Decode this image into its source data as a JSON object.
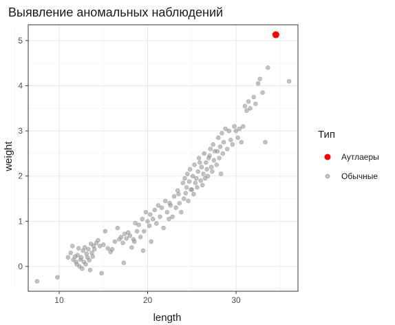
{
  "chart_data": {
    "type": "scatter",
    "title": "Выявление аномальных наблюдений",
    "xlabel": "length",
    "ylabel": "weight",
    "xlim": [
      6.5,
      37.0
    ],
    "ylim": [
      -0.55,
      5.35
    ],
    "x_ticks": [
      10,
      20,
      30
    ],
    "y_ticks": [
      0,
      1,
      2,
      3,
      4,
      5
    ],
    "grid": true,
    "legend_title": "Тип",
    "legend_position": "right",
    "series": [
      {
        "name": "Аутлаеры",
        "color": "#ff0000",
        "points": [
          [
            34.5,
            5.13
          ]
        ]
      },
      {
        "name": "Обычные",
        "color": "#999999",
        "points": [
          [
            7.5,
            -0.33
          ],
          [
            9.8,
            -0.24
          ],
          [
            11.0,
            0.2
          ],
          [
            11.3,
            0.3
          ],
          [
            11.5,
            0.45
          ],
          [
            11.6,
            0.15
          ],
          [
            11.8,
            0.22
          ],
          [
            11.9,
            0.1
          ],
          [
            12.0,
            0.05
          ],
          [
            12.1,
            0.25
          ],
          [
            12.2,
            0.4
          ],
          [
            12.3,
            0.0
          ],
          [
            12.4,
            0.15
          ],
          [
            12.5,
            0.2
          ],
          [
            12.6,
            -0.05
          ],
          [
            12.7,
            0.35
          ],
          [
            12.8,
            0.1
          ],
          [
            12.9,
            0.42
          ],
          [
            13.0,
            0.05
          ],
          [
            13.1,
            0.28
          ],
          [
            13.2,
            0.2
          ],
          [
            13.3,
            0.38
          ],
          [
            13.4,
            0.14
          ],
          [
            13.5,
            -0.08
          ],
          [
            13.6,
            0.5
          ],
          [
            13.7,
            0.3
          ],
          [
            13.8,
            0.22
          ],
          [
            13.9,
            0.45
          ],
          [
            14.0,
            0.38
          ],
          [
            14.2,
            0.52
          ],
          [
            14.4,
            0.58
          ],
          [
            14.6,
            0.45
          ],
          [
            14.8,
            -0.15
          ],
          [
            15.0,
            0.48
          ],
          [
            15.2,
            0.78
          ],
          [
            15.5,
            0.4
          ],
          [
            15.8,
            0.32
          ],
          [
            16.0,
            0.38
          ],
          [
            16.3,
            0.55
          ],
          [
            16.6,
            0.85
          ],
          [
            16.8,
            0.6
          ],
          [
            17.0,
            0.65
          ],
          [
            17.2,
            0.52
          ],
          [
            17.3,
            0.08
          ],
          [
            17.4,
            0.72
          ],
          [
            17.6,
            0.62
          ],
          [
            17.8,
            0.75
          ],
          [
            18.0,
            0.68
          ],
          [
            18.2,
            0.42
          ],
          [
            18.4,
            0.6
          ],
          [
            18.5,
            0.55
          ],
          [
            18.6,
            0.96
          ],
          [
            18.8,
            0.78
          ],
          [
            19.0,
            0.92
          ],
          [
            19.2,
            0.65
          ],
          [
            19.4,
            1.05
          ],
          [
            19.5,
            0.35
          ],
          [
            19.6,
            0.78
          ],
          [
            19.8,
            1.2
          ],
          [
            20.0,
            1.0
          ],
          [
            20.2,
            0.9
          ],
          [
            20.3,
            1.15
          ],
          [
            20.4,
            0.55
          ],
          [
            20.6,
            1.05
          ],
          [
            20.8,
            1.25
          ],
          [
            21.0,
            0.95
          ],
          [
            21.2,
            1.35
          ],
          [
            21.4,
            1.1
          ],
          [
            21.6,
            1.3
          ],
          [
            21.8,
            0.85
          ],
          [
            22.0,
            1.45
          ],
          [
            22.2,
            1.2
          ],
          [
            22.4,
            1.05
          ],
          [
            22.6,
            1.35
          ],
          [
            22.8,
            1.1
          ],
          [
            23.0,
            1.55
          ],
          [
            23.2,
            1.3
          ],
          [
            23.4,
            1.68
          ],
          [
            23.6,
            1.4
          ],
          [
            23.8,
            1.2
          ],
          [
            24.0,
            1.85
          ],
          [
            24.1,
            1.5
          ],
          [
            24.2,
            1.95
          ],
          [
            24.3,
            1.62
          ],
          [
            24.4,
            1.75
          ],
          [
            24.5,
            2.05
          ],
          [
            24.6,
            1.45
          ],
          [
            24.7,
            1.88
          ],
          [
            24.8,
            2.15
          ],
          [
            25.0,
            1.7
          ],
          [
            25.1,
            2.0
          ],
          [
            25.2,
            1.6
          ],
          [
            25.3,
            2.25
          ],
          [
            25.4,
            1.85
          ],
          [
            25.5,
            1.95
          ],
          [
            25.6,
            1.75
          ],
          [
            25.7,
            2.1
          ],
          [
            25.8,
            2.4
          ],
          [
            26.0,
            1.9
          ],
          [
            26.1,
            2.2
          ],
          [
            26.2,
            1.8
          ],
          [
            26.3,
            2.05
          ],
          [
            26.4,
            2.5
          ],
          [
            26.5,
            1.95
          ],
          [
            26.6,
            2.3
          ],
          [
            26.7,
            2.15
          ],
          [
            26.8,
            2.0
          ],
          [
            27.0,
            2.45
          ],
          [
            27.1,
            2.6
          ],
          [
            27.2,
            2.2
          ],
          [
            27.3,
            2.1
          ],
          [
            27.4,
            2.7
          ],
          [
            27.5,
            2.35
          ],
          [
            27.6,
            2.55
          ],
          [
            27.8,
            2.25
          ],
          [
            28.0,
            2.85
          ],
          [
            28.1,
            2.4
          ],
          [
            28.2,
            2.65
          ],
          [
            28.3,
            2.05
          ],
          [
            28.4,
            2.95
          ],
          [
            28.5,
            2.5
          ],
          [
            28.6,
            2.75
          ],
          [
            28.8,
            3.05
          ],
          [
            29.0,
            2.6
          ],
          [
            29.2,
            3.0
          ],
          [
            29.4,
            2.8
          ],
          [
            29.6,
            2.7
          ],
          [
            29.8,
            3.1
          ],
          [
            30.0,
            3.0
          ],
          [
            30.2,
            2.85
          ],
          [
            30.4,
            3.05
          ],
          [
            30.6,
            2.75
          ],
          [
            30.8,
            3.1
          ],
          [
            31.0,
            3.55
          ],
          [
            31.2,
            3.45
          ],
          [
            31.4,
            3.65
          ],
          [
            31.6,
            3.5
          ],
          [
            32.0,
            3.75
          ],
          [
            32.2,
            3.6
          ],
          [
            32.5,
            4.05
          ],
          [
            32.7,
            4.15
          ],
          [
            33.0,
            3.85
          ],
          [
            33.3,
            2.75
          ],
          [
            33.6,
            4.4
          ],
          [
            36.0,
            4.1
          ],
          [
            22.5,
            1.4
          ],
          [
            23.5,
            1.6
          ],
          [
            24.9,
            1.7
          ],
          [
            25.9,
            2.3
          ],
          [
            26.9,
            2.4
          ],
          [
            27.9,
            2.55
          ]
        ]
      }
    ]
  }
}
